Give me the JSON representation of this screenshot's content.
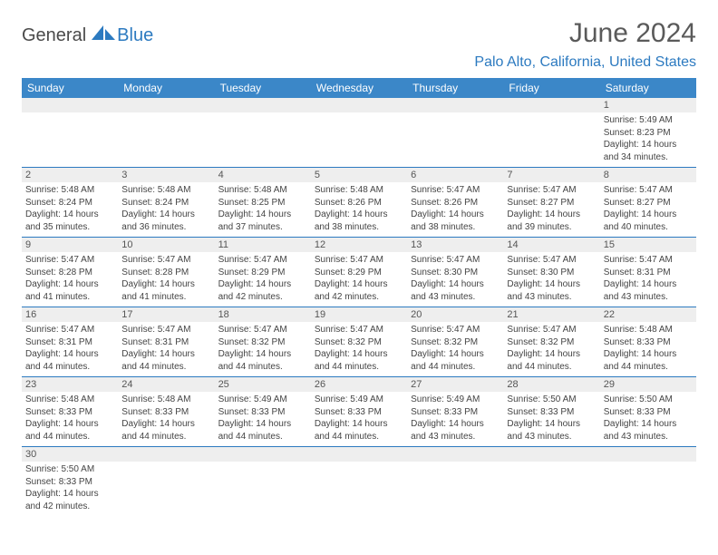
{
  "logo": {
    "general": "General",
    "blue": "Blue"
  },
  "title": "June 2024",
  "location": "Palo Alto, California, United States",
  "weekdays": [
    "Sunday",
    "Monday",
    "Tuesday",
    "Wednesday",
    "Thursday",
    "Friday",
    "Saturday"
  ],
  "colors": {
    "header_bg": "#3b87c8",
    "accent": "#2c7ac0",
    "daynum_bg": "#eeeeee",
    "text": "#444444"
  },
  "weeks": [
    [
      null,
      null,
      null,
      null,
      null,
      null,
      {
        "n": "1",
        "sunrise": "5:49 AM",
        "sunset": "8:23 PM",
        "daylight": "14 hours and 34 minutes."
      }
    ],
    [
      {
        "n": "2",
        "sunrise": "5:48 AM",
        "sunset": "8:24 PM",
        "daylight": "14 hours and 35 minutes."
      },
      {
        "n": "3",
        "sunrise": "5:48 AM",
        "sunset": "8:24 PM",
        "daylight": "14 hours and 36 minutes."
      },
      {
        "n": "4",
        "sunrise": "5:48 AM",
        "sunset": "8:25 PM",
        "daylight": "14 hours and 37 minutes."
      },
      {
        "n": "5",
        "sunrise": "5:48 AM",
        "sunset": "8:26 PM",
        "daylight": "14 hours and 38 minutes."
      },
      {
        "n": "6",
        "sunrise": "5:47 AM",
        "sunset": "8:26 PM",
        "daylight": "14 hours and 38 minutes."
      },
      {
        "n": "7",
        "sunrise": "5:47 AM",
        "sunset": "8:27 PM",
        "daylight": "14 hours and 39 minutes."
      },
      {
        "n": "8",
        "sunrise": "5:47 AM",
        "sunset": "8:27 PM",
        "daylight": "14 hours and 40 minutes."
      }
    ],
    [
      {
        "n": "9",
        "sunrise": "5:47 AM",
        "sunset": "8:28 PM",
        "daylight": "14 hours and 41 minutes."
      },
      {
        "n": "10",
        "sunrise": "5:47 AM",
        "sunset": "8:28 PM",
        "daylight": "14 hours and 41 minutes."
      },
      {
        "n": "11",
        "sunrise": "5:47 AM",
        "sunset": "8:29 PM",
        "daylight": "14 hours and 42 minutes."
      },
      {
        "n": "12",
        "sunrise": "5:47 AM",
        "sunset": "8:29 PM",
        "daylight": "14 hours and 42 minutes."
      },
      {
        "n": "13",
        "sunrise": "5:47 AM",
        "sunset": "8:30 PM",
        "daylight": "14 hours and 43 minutes."
      },
      {
        "n": "14",
        "sunrise": "5:47 AM",
        "sunset": "8:30 PM",
        "daylight": "14 hours and 43 minutes."
      },
      {
        "n": "15",
        "sunrise": "5:47 AM",
        "sunset": "8:31 PM",
        "daylight": "14 hours and 43 minutes."
      }
    ],
    [
      {
        "n": "16",
        "sunrise": "5:47 AM",
        "sunset": "8:31 PM",
        "daylight": "14 hours and 44 minutes."
      },
      {
        "n": "17",
        "sunrise": "5:47 AM",
        "sunset": "8:31 PM",
        "daylight": "14 hours and 44 minutes."
      },
      {
        "n": "18",
        "sunrise": "5:47 AM",
        "sunset": "8:32 PM",
        "daylight": "14 hours and 44 minutes."
      },
      {
        "n": "19",
        "sunrise": "5:47 AM",
        "sunset": "8:32 PM",
        "daylight": "14 hours and 44 minutes."
      },
      {
        "n": "20",
        "sunrise": "5:47 AM",
        "sunset": "8:32 PM",
        "daylight": "14 hours and 44 minutes."
      },
      {
        "n": "21",
        "sunrise": "5:47 AM",
        "sunset": "8:32 PM",
        "daylight": "14 hours and 44 minutes."
      },
      {
        "n": "22",
        "sunrise": "5:48 AM",
        "sunset": "8:33 PM",
        "daylight": "14 hours and 44 minutes."
      }
    ],
    [
      {
        "n": "23",
        "sunrise": "5:48 AM",
        "sunset": "8:33 PM",
        "daylight": "14 hours and 44 minutes."
      },
      {
        "n": "24",
        "sunrise": "5:48 AM",
        "sunset": "8:33 PM",
        "daylight": "14 hours and 44 minutes."
      },
      {
        "n": "25",
        "sunrise": "5:49 AM",
        "sunset": "8:33 PM",
        "daylight": "14 hours and 44 minutes."
      },
      {
        "n": "26",
        "sunrise": "5:49 AM",
        "sunset": "8:33 PM",
        "daylight": "14 hours and 44 minutes."
      },
      {
        "n": "27",
        "sunrise": "5:49 AM",
        "sunset": "8:33 PM",
        "daylight": "14 hours and 43 minutes."
      },
      {
        "n": "28",
        "sunrise": "5:50 AM",
        "sunset": "8:33 PM",
        "daylight": "14 hours and 43 minutes."
      },
      {
        "n": "29",
        "sunrise": "5:50 AM",
        "sunset": "8:33 PM",
        "daylight": "14 hours and 43 minutes."
      }
    ],
    [
      {
        "n": "30",
        "sunrise": "5:50 AM",
        "sunset": "8:33 PM",
        "daylight": "14 hours and 42 minutes."
      },
      null,
      null,
      null,
      null,
      null,
      null
    ]
  ],
  "labels": {
    "sunrise": "Sunrise: ",
    "sunset": "Sunset: ",
    "daylight": "Daylight: "
  }
}
